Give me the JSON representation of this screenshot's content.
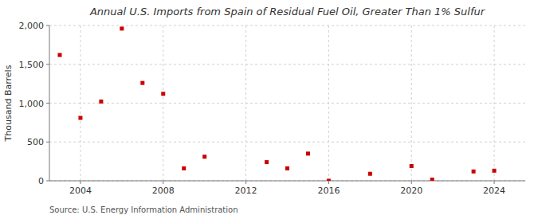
{
  "chart_data": {
    "type": "scatter",
    "title": "Annual U.S. Imports from Spain of Residual Fuel Oil, Greater Than 1% Sulfur",
    "ylabel": "Thousand Barrels",
    "source": "Source: U.S. Energy Information Administration",
    "x": [
      2003,
      2004,
      2005,
      2006,
      2007,
      2008,
      2009,
      2010,
      2013,
      2014,
      2015,
      2016,
      2018,
      2020,
      2021,
      2023,
      2024
    ],
    "values": [
      1620,
      810,
      1020,
      1960,
      1260,
      1120,
      160,
      310,
      240,
      160,
      350,
      0,
      90,
      190,
      15,
      120,
      130
    ],
    "color": "#cc0000",
    "marker": "square",
    "xlim": [
      2002.5,
      2025.5
    ],
    "ylim": [
      0,
      2000
    ],
    "xticks": [
      2004,
      2008,
      2012,
      2016,
      2020,
      2024
    ],
    "yticks": [
      0,
      500,
      {
        "value": 1000,
        "label": "1,000"
      },
      {
        "value": 1500,
        "label": "1,500"
      },
      {
        "value": 2000,
        "label": "2,000"
      }
    ],
    "grid": true
  }
}
